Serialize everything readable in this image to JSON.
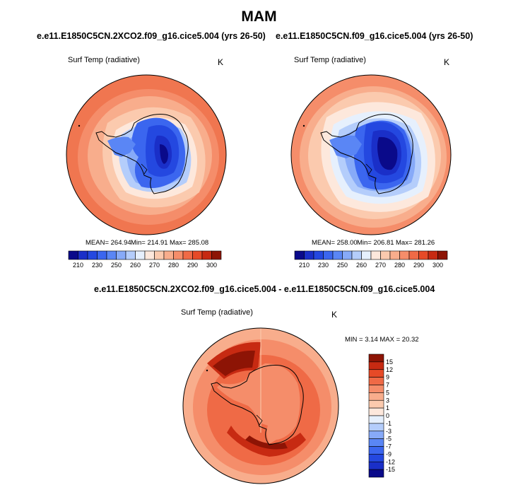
{
  "title": "MAM",
  "panels": [
    {
      "case": "e.e11.E1850C5CN.2XCO2.f09_g16.cice5.004 (yrs 26-50)",
      "variable": "Surf Temp (radiative)",
      "units": "K",
      "mean_text": "MEAN= 264.94",
      "min_text": "Min= 214.91",
      "max_text": "Max= 285.08"
    },
    {
      "case": "e.e11.E1850C5CN.f09_g16.cice5.004 (yrs 26-50)",
      "variable": "Surf Temp (radiative)",
      "units": "K",
      "mean_text": "MEAN= 258.00",
      "min_text": "Min= 206.81",
      "max_text": "Max= 281.26"
    }
  ],
  "diff": {
    "title": "e.e11.E1850C5CN.2XCO2.f09_g16.cice5.004 - e.e11.E1850C5CN.f09_g16.cice5.004",
    "variable": "Surf Temp (radiative)",
    "units": "K",
    "minmax_text": "MIN =   3.14 MAX =  20.32"
  },
  "abs_colorbar": {
    "labels": [
      "210",
      "230",
      "250",
      "260",
      "270",
      "280",
      "290",
      "300"
    ],
    "colors": [
      "#0a0a8a",
      "#1a2fc8",
      "#2448e0",
      "#3b66ef",
      "#5a86f5",
      "#87aaf8",
      "#b4cdfb",
      "#e6f0fd",
      "#fde8dc",
      "#fbcaae",
      "#f8ad8c",
      "#f58d6a",
      "#ef6a46",
      "#e64a27",
      "#c72a12",
      "#8d1405"
    ]
  },
  "diff_colorbar": {
    "labels": [
      "15",
      "12",
      "9",
      "7",
      "5",
      "3",
      "1",
      "0",
      "-1",
      "-3",
      "-5",
      "-7",
      "-9",
      "-12",
      "-15"
    ],
    "colors": [
      "#8d1405",
      "#c72a12",
      "#e64a27",
      "#ef6a46",
      "#f58d6a",
      "#f8ad8c",
      "#fbcaae",
      "#fde8dc",
      "#e6f0fd",
      "#b4cdfb",
      "#87aaf8",
      "#5a86f5",
      "#3b66ef",
      "#2448e0",
      "#1a2fc8",
      "#0a0a8a"
    ]
  }
}
